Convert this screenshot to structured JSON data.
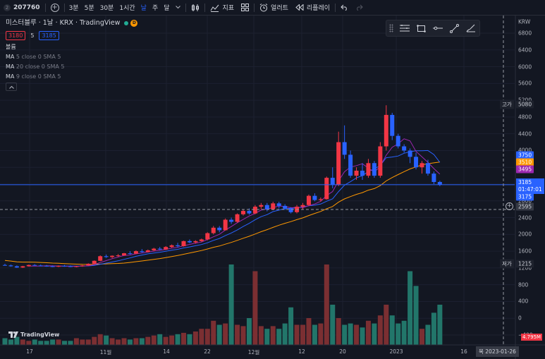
{
  "toolbar": {
    "symbol_badge": "2",
    "symbol_code": "207760",
    "intervals": [
      "3분",
      "5분",
      "30분",
      "1시간",
      "날",
      "주",
      "달"
    ],
    "active_interval": "날",
    "indicators_label": "지표",
    "alert_label": "얼러트",
    "replay_label": "리플레이"
  },
  "legend": {
    "title": "미스터블루 · 1날 · KRX · TradingView",
    "d_badge": "D",
    "sell_price": "3180",
    "spread": "5",
    "buy_price": "3185",
    "volume_label": "볼륨",
    "indicators": [
      {
        "name": "MA",
        "params": "5 close 0 SMA 5"
      },
      {
        "name": "MA",
        "params": "20 close 0 SMA 5"
      },
      {
        "name": "MA",
        "params": "9 close 0 SMA 5"
      }
    ]
  },
  "price_scale": {
    "currency": "KRW",
    "ticks": [
      "6800",
      "6400",
      "6000",
      "5600",
      "5200",
      "4800",
      "4400",
      "4000",
      "3600",
      "3200",
      "2800",
      "2400",
      "2000",
      "1600",
      "1200",
      "800",
      "400",
      "0",
      "−400"
    ],
    "high_label": "고가",
    "high_value": "5080",
    "low_label": "저가",
    "low_value": "1215",
    "ma_tags": [
      {
        "value": "3750",
        "color": "#2962ff"
      },
      {
        "value": "3510",
        "color": "#ff9800"
      },
      {
        "value": "3495",
        "color": "#9c27b0"
      }
    ],
    "last_price": "3185",
    "countdown": "01:47:01",
    "prev_price": "3175",
    "crosshair_price": "2595",
    "volume_tag": "4.795M"
  },
  "time_scale": {
    "labels": [
      "17",
      "11월",
      "14",
      "22",
      "12월",
      "12",
      "20",
      "2023",
      "16"
    ],
    "crosshair_date": "목 2023-01-26"
  },
  "watermark": "TradingView",
  "colors": {
    "up": "#f23645",
    "down": "#2962ff",
    "vol_up": "#7b2f32",
    "vol_down": "#22766a",
    "ma5": "#9c27b0",
    "ma9": "#2962ff",
    "ma20": "#ff9800"
  },
  "chart_data": {
    "type": "candlestick",
    "ohlc": [
      [
        1270,
        1300,
        1250,
        1260
      ],
      [
        1260,
        1280,
        1230,
        1240
      ],
      [
        1240,
        1260,
        1200,
        1210
      ],
      [
        1210,
        1250,
        1200,
        1240
      ],
      [
        1240,
        1280,
        1230,
        1270
      ],
      [
        1270,
        1290,
        1250,
        1260
      ],
      [
        1260,
        1280,
        1240,
        1250
      ],
      [
        1250,
        1270,
        1230,
        1240
      ],
      [
        1240,
        1260,
        1220,
        1230
      ],
      [
        1230,
        1260,
        1220,
        1250
      ],
      [
        1250,
        1270,
        1230,
        1240
      ],
      [
        1240,
        1260,
        1220,
        1230
      ],
      [
        1230,
        1250,
        1215,
        1240
      ],
      [
        1240,
        1270,
        1230,
        1260
      ],
      [
        1260,
        1310,
        1250,
        1300
      ],
      [
        1300,
        1380,
        1290,
        1370
      ],
      [
        1370,
        1500,
        1360,
        1480
      ],
      [
        1480,
        1520,
        1440,
        1460
      ],
      [
        1460,
        1500,
        1430,
        1490
      ],
      [
        1490,
        1530,
        1460,
        1500
      ],
      [
        1500,
        1560,
        1490,
        1550
      ],
      [
        1550,
        1600,
        1520,
        1540
      ],
      [
        1540,
        1620,
        1530,
        1600
      ],
      [
        1600,
        1650,
        1560,
        1580
      ],
      [
        1580,
        1640,
        1570,
        1620
      ],
      [
        1620,
        1680,
        1600,
        1660
      ],
      [
        1660,
        1700,
        1620,
        1640
      ],
      [
        1640,
        1720,
        1630,
        1700
      ],
      [
        1700,
        1760,
        1680,
        1740
      ],
      [
        1740,
        1800,
        1690,
        1720
      ],
      [
        1720,
        1850,
        1710,
        1840
      ],
      [
        1840,
        1880,
        1790,
        1810
      ],
      [
        1810,
        1860,
        1780,
        1840
      ],
      [
        1840,
        1900,
        1820,
        1880
      ],
      [
        1880,
        2050,
        1860,
        2030
      ],
      [
        2030,
        2200,
        2000,
        2160
      ],
      [
        2160,
        2200,
        2050,
        2100
      ],
      [
        2100,
        2380,
        2090,
        2350
      ],
      [
        2350,
        2400,
        2250,
        2300
      ],
      [
        2300,
        2500,
        2280,
        2480
      ],
      [
        2480,
        2600,
        2450,
        2560
      ],
      [
        2560,
        2620,
        2470,
        2500
      ],
      [
        2500,
        2700,
        2480,
        2660
      ],
      [
        2660,
        2750,
        2600,
        2700
      ],
      [
        2700,
        2750,
        2550,
        2600
      ],
      [
        2600,
        2780,
        2580,
        2740
      ],
      [
        2740,
        2780,
        2620,
        2680
      ],
      [
        2680,
        2720,
        2580,
        2620
      ],
      [
        2620,
        2650,
        2500,
        2530
      ],
      [
        2530,
        2700,
        2500,
        2660
      ],
      [
        2660,
        2750,
        2600,
        2700
      ],
      [
        2700,
        2950,
        2680,
        2920
      ],
      [
        2920,
        2980,
        2790,
        2820
      ],
      [
        2820,
        2880,
        2780,
        2840
      ],
      [
        2840,
        3380,
        2830,
        3350
      ],
      [
        3350,
        3600,
        3100,
        3180
      ],
      [
        3180,
        4450,
        3150,
        4200
      ],
      [
        4200,
        4600,
        3800,
        3900
      ],
      [
        3900,
        4000,
        3350,
        3400
      ],
      [
        3400,
        3600,
        3300,
        3520
      ],
      [
        3520,
        3700,
        3300,
        3400
      ],
      [
        3400,
        3800,
        3350,
        3700
      ],
      [
        3700,
        3750,
        3350,
        3400
      ],
      [
        3400,
        4200,
        3350,
        4100
      ],
      [
        4100,
        5080,
        4000,
        4850
      ],
      [
        4850,
        4900,
        4250,
        4350
      ],
      [
        4350,
        4400,
        4050,
        4100
      ],
      [
        4100,
        4150,
        3950,
        4000
      ],
      [
        4000,
        4050,
        3700,
        3850
      ],
      [
        3850,
        3950,
        3550,
        3600
      ],
      [
        3600,
        3750,
        3450,
        3700
      ],
      [
        3700,
        3780,
        3400,
        3450
      ],
      [
        3450,
        3500,
        3200,
        3250
      ],
      [
        3250,
        3280,
        3150,
        3185
      ]
    ],
    "volume": [
      5,
      4,
      6,
      4,
      3,
      4,
      3,
      3,
      4,
      4,
      3,
      3,
      5,
      4,
      4,
      6,
      8,
      7,
      5,
      4,
      5,
      4,
      5,
      5,
      6,
      7,
      8,
      6,
      7,
      8,
      9,
      8,
      10,
      12,
      12,
      18,
      15,
      16,
      60,
      15,
      14,
      20,
      55,
      14,
      12,
      14,
      12,
      16,
      28,
      15,
      15,
      20,
      15,
      16,
      60,
      30,
      20,
      15,
      16,
      15,
      13,
      18,
      16,
      22,
      30,
      22,
      16,
      18,
      55,
      44,
      12,
      15,
      24,
      30
    ]
  }
}
